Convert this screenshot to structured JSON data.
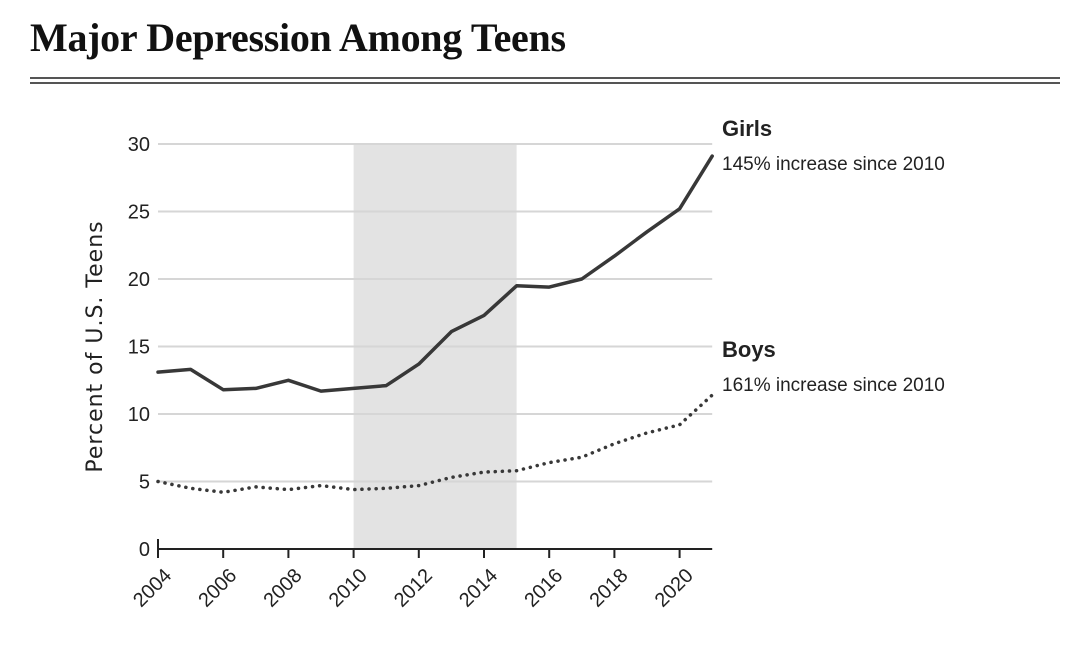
{
  "chart_data": {
    "type": "line",
    "title": "Major Depression Among Teens",
    "ylabel": "Percent of U.S. Teens",
    "xlabel": "",
    "xlim": [
      2004,
      2021
    ],
    "ylim": [
      0,
      30
    ],
    "yticks": [
      0,
      5,
      10,
      15,
      20,
      25,
      30
    ],
    "xticks": [
      2004,
      2006,
      2008,
      2010,
      2012,
      2014,
      2016,
      2018,
      2020
    ],
    "grid": "horizontal",
    "shaded_region": [
      2010,
      2015
    ],
    "x": [
      2004,
      2005,
      2006,
      2007,
      2008,
      2009,
      2010,
      2011,
      2012,
      2013,
      2014,
      2015,
      2016,
      2017,
      2018,
      2019,
      2020,
      2021
    ],
    "series": [
      {
        "name": "Girls",
        "annotation": "145% increase since 2010",
        "style": "solid",
        "values": [
          13.1,
          13.3,
          11.8,
          11.9,
          12.5,
          11.7,
          11.9,
          12.1,
          13.7,
          16.1,
          17.3,
          19.5,
          19.4,
          20.0,
          21.7,
          23.5,
          25.2,
          29.1
        ]
      },
      {
        "name": "Boys",
        "annotation": "161% increase since 2010",
        "style": "dotted",
        "values": [
          5.0,
          4.5,
          4.2,
          4.6,
          4.4,
          4.7,
          4.4,
          4.5,
          4.7,
          5.3,
          5.7,
          5.8,
          6.4,
          6.8,
          7.8,
          8.6,
          9.2,
          11.4
        ]
      }
    ],
    "colors": {
      "line": "#383838",
      "shade": "#e3e3e3",
      "grid": "#d6d6d6",
      "axis": "#222222"
    }
  }
}
